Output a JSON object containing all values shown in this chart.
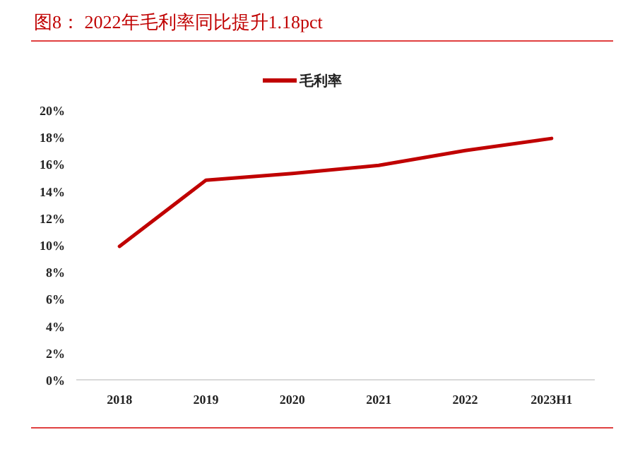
{
  "chart_data": {
    "type": "line",
    "title": "图8： 2022年毛利率同比提升1.18pct",
    "categories": [
      "2018",
      "2019",
      "2020",
      "2021",
      "2022",
      "2023H1"
    ],
    "series": [
      {
        "name": "毛利率",
        "color": "#c00000",
        "values": [
          9.9,
          14.8,
          15.3,
          15.9,
          17.0,
          17.9
        ]
      }
    ],
    "ylim": [
      0,
      20
    ],
    "yticks": [
      {
        "value": 0,
        "label": "0%"
      },
      {
        "value": 2,
        "label": "2%"
      },
      {
        "value": 4,
        "label": "4%"
      },
      {
        "value": 6,
        "label": "6%"
      },
      {
        "value": 8,
        "label": "8%"
      },
      {
        "value": 10,
        "label": "10%"
      },
      {
        "value": 12,
        "label": "12%"
      },
      {
        "value": 14,
        "label": "14%"
      },
      {
        "value": 16,
        "label": "16%"
      },
      {
        "value": 18,
        "label": "18%"
      },
      {
        "value": 20,
        "label": "20%"
      }
    ],
    "grid": false,
    "legend": "top",
    "marker": "none",
    "line_style": "solid"
  }
}
